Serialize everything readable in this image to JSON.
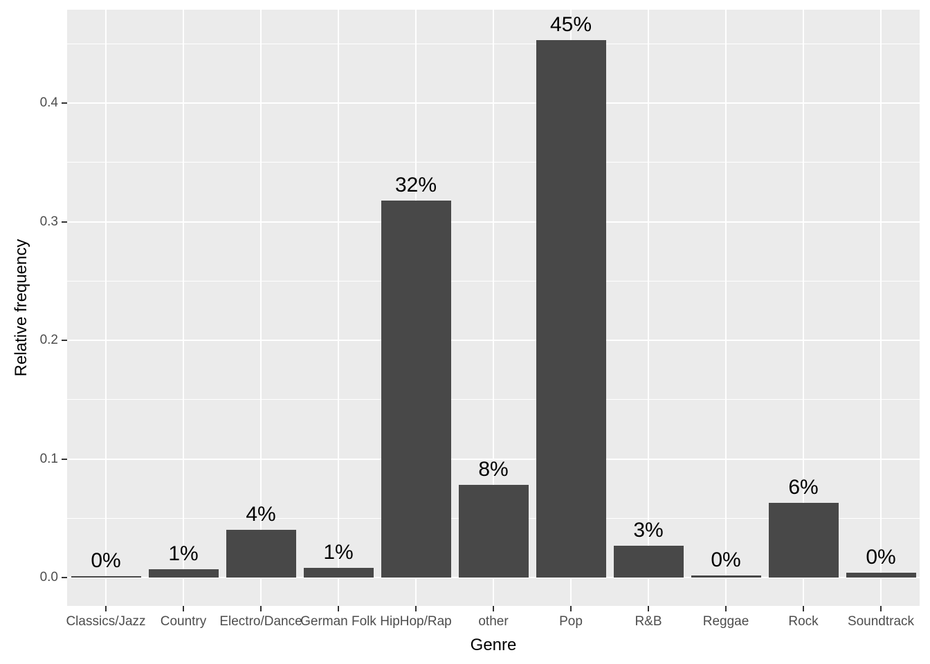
{
  "chart_data": {
    "type": "bar",
    "title": "",
    "xlabel": "Genre",
    "ylabel": "Relative frequency",
    "categories": [
      "Classics/Jazz",
      "Country",
      "Electro/Dance",
      "German Folk",
      "HipHop/Rap",
      "other",
      "Pop",
      "R&B",
      "Reggae",
      "Rock",
      "Soundtrack"
    ],
    "values": [
      0.001,
      0.007,
      0.04,
      0.008,
      0.318,
      0.078,
      0.453,
      0.027,
      0.002,
      0.063,
      0.004
    ],
    "bar_labels": [
      "0%",
      "1%",
      "4%",
      "1%",
      "32%",
      "8%",
      "45%",
      "3%",
      "0%",
      "6%",
      "0%"
    ],
    "y_ticks": [
      0.0,
      0.1,
      0.2,
      0.3,
      0.4
    ],
    "y_tick_labels": [
      "0.0",
      "0.1",
      "0.2",
      "0.3",
      "0.4"
    ],
    "y_minor_ticks": [
      0.05,
      0.15,
      0.25,
      0.35,
      0.45
    ],
    "ylim": [
      -0.024,
      0.479
    ],
    "grid": true,
    "legend": false,
    "colors": {
      "bar_fill": "#484848",
      "panel_background": "#ebebeb",
      "gridline": "#ffffff",
      "axis_text": "#4d4d4d",
      "axis_title": "#000000",
      "bar_label_text": "#000000",
      "tick_mark": "#333333",
      "figure_background": "#ffffff"
    }
  }
}
